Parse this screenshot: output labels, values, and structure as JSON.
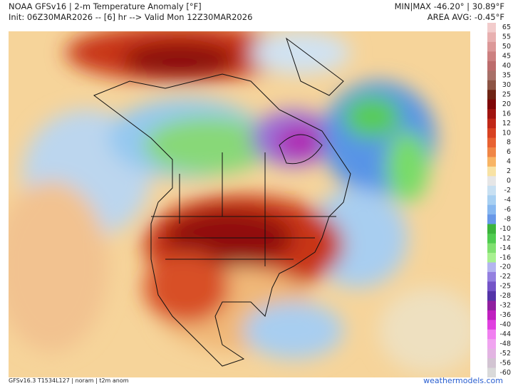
{
  "header": {
    "title": "NOAA GFSv16 | 2-m Temperature Anomaly [°F]",
    "init": "Init: 06Z30MAR2026 -- [6] hr --> Valid Mon 12Z30MAR2026",
    "minmax": "MIN|MAX -46.20° | 30.89°F",
    "area_avg": "AREA AVG: -0.45°F"
  },
  "colorbar": {
    "levels": [
      65,
      55,
      50,
      45,
      40,
      35,
      30,
      25,
      20,
      16,
      12,
      10,
      8,
      6,
      4,
      2,
      0,
      -2,
      -4,
      -6,
      -8,
      -10,
      -12,
      -14,
      -16,
      -20,
      -22,
      -25,
      -28,
      -32,
      -36,
      -40,
      -44,
      -48,
      -52,
      -56,
      -60
    ],
    "colors": [
      "#f2cccc",
      "#e8b0b0",
      "#dc9898",
      "#cc8080",
      "#bc6c6c",
      "#a87068",
      "#8c5444",
      "#6e2414",
      "#7e0606",
      "#a01410",
      "#c02818",
      "#d84222",
      "#e86232",
      "#f08646",
      "#f8b464",
      "#f8e2a4",
      "#e6e6e6",
      "#c8e0f2",
      "#a8d0f2",
      "#88b8f0",
      "#6898e8",
      "#3cb43c",
      "#50cc50",
      "#80e070",
      "#a8f090",
      "#b4b4f0",
      "#9480e0",
      "#7454c8",
      "#5434a8",
      "#9020a0",
      "#c020c0",
      "#e040e0",
      "#f080f0",
      "#f0a4f0",
      "#e2b4e2",
      "#d2c4d2",
      "#dadada"
    ]
  },
  "footer": {
    "model": "GFSv16.3 T1534L127 | noram | t2m anom",
    "site": "weathermodels.com"
  }
}
